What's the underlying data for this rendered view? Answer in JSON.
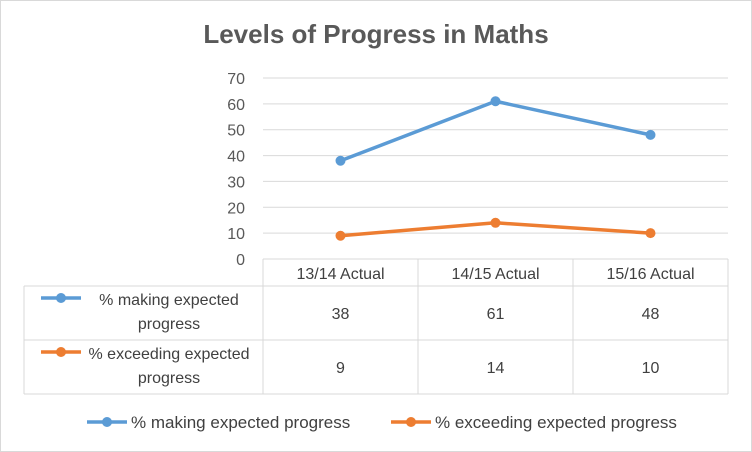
{
  "chart_data": {
    "type": "line",
    "title": "Levels of Progress in Maths",
    "categories": [
      "13/14 Actual",
      "14/15 Actual",
      "15/16 Actual"
    ],
    "series": [
      {
        "name": "% making expected progress",
        "values": [
          38,
          61,
          48
        ],
        "color": "#5b9bd5",
        "table_label_lines": [
          "% making expected",
          "progress"
        ]
      },
      {
        "name": "% exceeding expected progress",
        "values": [
          9,
          14,
          10
        ],
        "color": "#ed7d31",
        "table_label_lines": [
          "% exceeding expected",
          "progress"
        ]
      }
    ],
    "ylim": [
      0,
      70
    ],
    "yticks": [
      0,
      10,
      20,
      30,
      40,
      50,
      60,
      70
    ],
    "grid": true,
    "legend_position": "bottom",
    "data_table": true
  }
}
